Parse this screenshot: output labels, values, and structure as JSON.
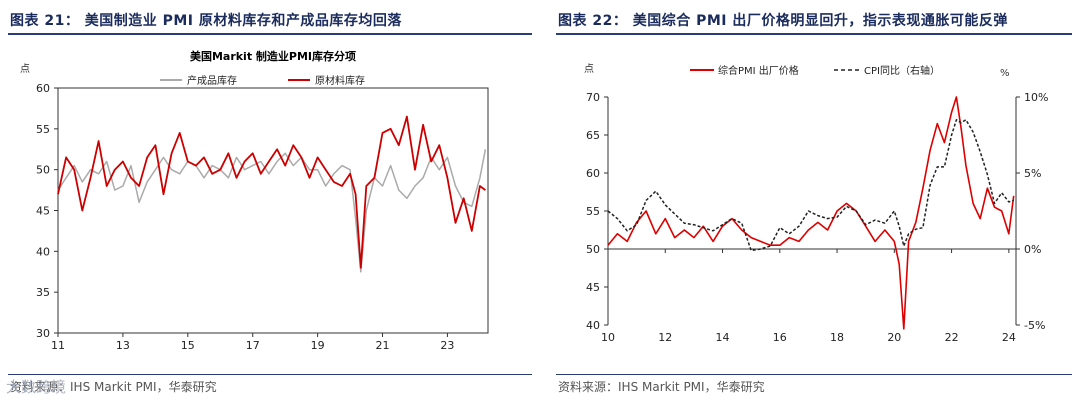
{
  "left_panel": {
    "figure_title": "图表 21：   美国制造业 PMI 原材料库存和产成品库存均回落",
    "source": "资料来源：IHS Markit PMI，华泰研究",
    "watermark": "大数跨境"
  },
  "right_panel": {
    "figure_title": "图表 22：   美国综合 PMI 出厂价格明显回升，指示表现通胀可能反弹",
    "source": "资料来源：IHS Markit PMI，华泰研究"
  },
  "chart_data": [
    {
      "type": "line",
      "title": "美国Markit 制造业PMI库存分项",
      "ylabel": "点",
      "xlabel": "",
      "ylim": [
        30,
        60
      ],
      "yticks": [
        30,
        35,
        40,
        45,
        50,
        55,
        60
      ],
      "xlim": [
        2011,
        2024.25
      ],
      "xticks": [
        "11",
        "13",
        "15",
        "17",
        "19",
        "21",
        "23"
      ],
      "grid": false,
      "legend": "top-center",
      "series": [
        {
          "name": "产成品库存",
          "color": "#aaaaaa",
          "x": [
            2011.0,
            2011.25,
            2011.5,
            2011.75,
            2012.0,
            2012.25,
            2012.5,
            2012.75,
            2013.0,
            2013.25,
            2013.5,
            2013.75,
            2014.0,
            2014.25,
            2014.5,
            2014.75,
            2015.0,
            2015.25,
            2015.5,
            2015.75,
            2016.0,
            2016.25,
            2016.5,
            2016.75,
            2017.0,
            2017.25,
            2017.5,
            2017.75,
            2018.0,
            2018.25,
            2018.5,
            2018.75,
            2019.0,
            2019.25,
            2019.5,
            2019.75,
            2020.0,
            2020.17,
            2020.33,
            2020.5,
            2020.75,
            2021.0,
            2021.25,
            2021.5,
            2021.75,
            2022.0,
            2022.25,
            2022.5,
            2022.75,
            2023.0,
            2023.25,
            2023.5,
            2023.75,
            2024.0,
            2024.17
          ],
          "values": [
            47.5,
            49.0,
            50.5,
            48.5,
            50.0,
            49.5,
            51.0,
            47.5,
            48.0,
            50.5,
            46.0,
            48.5,
            50.0,
            51.5,
            50.0,
            49.5,
            51.0,
            50.5,
            49.0,
            50.5,
            50.0,
            49.0,
            51.5,
            50.0,
            50.5,
            51.0,
            49.5,
            51.0,
            52.0,
            50.5,
            51.5,
            50.0,
            50.0,
            48.0,
            49.5,
            50.5,
            50.0,
            44.0,
            37.5,
            45.0,
            49.0,
            48.0,
            50.5,
            47.5,
            46.5,
            48.0,
            49.0,
            51.5,
            50.0,
            51.5,
            48.0,
            46.0,
            45.5,
            49.0,
            52.5
          ]
        },
        {
          "name": "原材料库存",
          "color": "#cc0000",
          "x": [
            2011.0,
            2011.25,
            2011.5,
            2011.75,
            2012.0,
            2012.25,
            2012.5,
            2012.75,
            2013.0,
            2013.25,
            2013.5,
            2013.75,
            2014.0,
            2014.25,
            2014.5,
            2014.75,
            2015.0,
            2015.25,
            2015.5,
            2015.75,
            2016.0,
            2016.25,
            2016.5,
            2016.75,
            2017.0,
            2017.25,
            2017.5,
            2017.75,
            2018.0,
            2018.25,
            2018.5,
            2018.75,
            2019.0,
            2019.25,
            2019.5,
            2019.75,
            2020.0,
            2020.17,
            2020.33,
            2020.5,
            2020.75,
            2021.0,
            2021.25,
            2021.5,
            2021.75,
            2022.0,
            2022.25,
            2022.5,
            2022.75,
            2023.0,
            2023.25,
            2023.5,
            2023.75,
            2024.0,
            2024.17
          ],
          "values": [
            47.0,
            51.5,
            50.0,
            45.0,
            49.0,
            53.5,
            48.0,
            50.0,
            51.0,
            49.0,
            48.0,
            51.5,
            53.0,
            47.0,
            52.0,
            54.5,
            51.0,
            50.5,
            51.5,
            49.5,
            50.0,
            52.0,
            49.0,
            51.0,
            52.0,
            49.5,
            51.0,
            52.5,
            50.5,
            53.0,
            51.5,
            49.0,
            51.5,
            50.0,
            48.5,
            48.0,
            49.5,
            47.0,
            38.0,
            48.0,
            49.0,
            54.5,
            55.0,
            53.0,
            56.5,
            50.0,
            55.5,
            51.0,
            53.0,
            49.0,
            43.5,
            46.5,
            42.5,
            48.0,
            47.5
          ]
        }
      ]
    },
    {
      "type": "line",
      "title": "",
      "ylabel": "点",
      "y2label": "%",
      "xlabel": "",
      "ylim": [
        40,
        70
      ],
      "yticks": [
        40,
        45,
        50,
        55,
        60,
        65,
        70
      ],
      "y2lim": [
        -5,
        10
      ],
      "y2ticks": [
        "-5%",
        "0%",
        "5%",
        "10%"
      ],
      "xlim": [
        2010,
        2024.25
      ],
      "xticks": [
        "10",
        "12",
        "14",
        "16",
        "18",
        "20",
        "22",
        "24"
      ],
      "grid": false,
      "legend": "top-center",
      "series": [
        {
          "name": "综合PMI 出厂价格",
          "axis": "left",
          "color": "#dd0000",
          "x": [
            2010.0,
            2010.33,
            2010.67,
            2011.0,
            2011.33,
            2011.67,
            2012.0,
            2012.33,
            2012.67,
            2013.0,
            2013.33,
            2013.67,
            2014.0,
            2014.33,
            2014.67,
            2015.0,
            2015.33,
            2015.67,
            2016.0,
            2016.33,
            2016.67,
            2017.0,
            2017.33,
            2017.67,
            2018.0,
            2018.33,
            2018.67,
            2019.0,
            2019.33,
            2019.67,
            2020.0,
            2020.17,
            2020.33,
            2020.5,
            2020.75,
            2021.0,
            2021.25,
            2021.5,
            2021.75,
            2022.0,
            2022.17,
            2022.33,
            2022.5,
            2022.75,
            2023.0,
            2023.25,
            2023.5,
            2023.75,
            2024.0,
            2024.17
          ],
          "values": [
            50.5,
            52.0,
            51.0,
            53.5,
            55.0,
            52.0,
            54.0,
            51.5,
            52.5,
            51.5,
            53.0,
            51.0,
            53.0,
            54.0,
            52.5,
            51.5,
            51.0,
            50.5,
            50.5,
            51.5,
            51.0,
            52.5,
            53.5,
            52.5,
            55.0,
            56.0,
            55.0,
            53.0,
            51.0,
            52.5,
            51.0,
            48.0,
            39.5,
            51.0,
            53.5,
            58.0,
            63.0,
            66.5,
            64.0,
            68.0,
            70.0,
            66.0,
            61.0,
            56.0,
            54.0,
            58.0,
            55.5,
            55.0,
            52.0,
            57.0
          ]
        },
        {
          "name": "CPI同比（右轴）",
          "axis": "right",
          "color": "#222222",
          "dashed": true,
          "x": [
            2010.0,
            2010.33,
            2010.67,
            2011.0,
            2011.33,
            2011.67,
            2012.0,
            2012.33,
            2012.67,
            2013.0,
            2013.33,
            2013.67,
            2014.0,
            2014.33,
            2014.67,
            2015.0,
            2015.33,
            2015.67,
            2016.0,
            2016.33,
            2016.67,
            2017.0,
            2017.33,
            2017.67,
            2018.0,
            2018.33,
            2018.67,
            2019.0,
            2019.33,
            2019.67,
            2020.0,
            2020.17,
            2020.33,
            2020.5,
            2020.75,
            2021.0,
            2021.25,
            2021.5,
            2021.75,
            2022.0,
            2022.17,
            2022.33,
            2022.5,
            2022.75,
            2023.0,
            2023.25,
            2023.5,
            2023.75,
            2024.0,
            2024.17
          ],
          "values": [
            2.5,
            2.0,
            1.2,
            1.6,
            3.2,
            3.8,
            2.9,
            2.3,
            1.7,
            1.6,
            1.4,
            1.2,
            1.6,
            2.0,
            1.7,
            -0.1,
            0.0,
            0.2,
            1.4,
            1.0,
            1.5,
            2.5,
            2.2,
            2.0,
            2.1,
            2.8,
            2.5,
            1.6,
            1.9,
            1.7,
            2.5,
            1.5,
            0.2,
            1.0,
            1.3,
            1.4,
            4.2,
            5.4,
            5.4,
            7.5,
            8.5,
            8.3,
            8.5,
            7.7,
            6.4,
            4.9,
            3.0,
            3.7,
            3.1,
            3.2
          ]
        }
      ]
    }
  ]
}
